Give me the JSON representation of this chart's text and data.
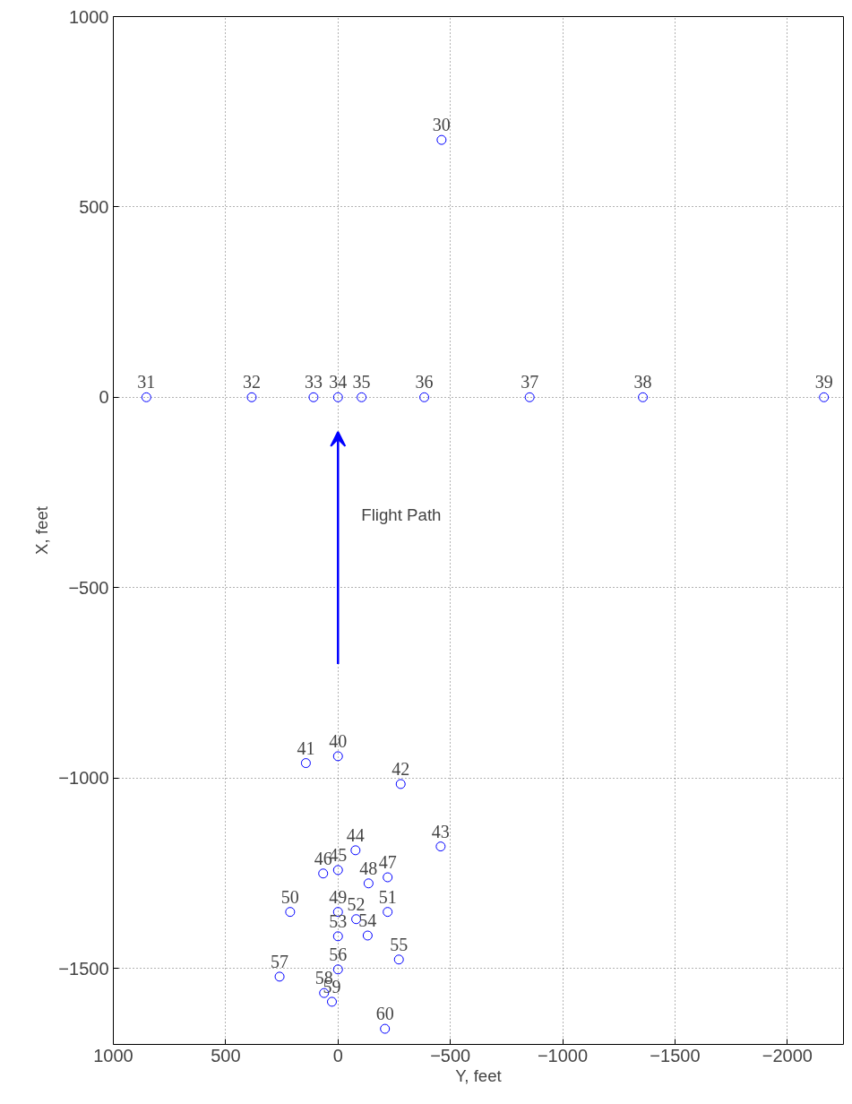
{
  "chart_data": {
    "type": "scatter",
    "xlabel": "Y, feet",
    "ylabel": "X, feet",
    "x": [
      -461,
      853,
      384,
      109,
      0,
      -105,
      -384,
      -853,
      -1357,
      -2163,
      0,
      143,
      -279,
      -457,
      -78,
      0,
      66,
      -221,
      -136,
      0,
      213,
      -221,
      -81,
      0,
      -132,
      -271,
      0,
      260,
      62,
      27,
      -209
    ],
    "series": [
      {
        "color": "#0000ff",
        "values": [
          676,
          0,
          0,
          0,
          0,
          0,
          0,
          0,
          0,
          0,
          -943,
          -961,
          -1016,
          -1180,
          -1190,
          -1242,
          -1251,
          -1261,
          -1277,
          -1352,
          -1352,
          -1352,
          -1371,
          -1416,
          -1414,
          -1477,
          -1503,
          -1522,
          -1565,
          -1588,
          -1659
        ]
      }
    ],
    "annotations": [
      {
        "text": "30",
        "x": -461,
        "y": 676
      },
      {
        "text": "31",
        "x": 853,
        "y": 0
      },
      {
        "text": "32",
        "x": 384,
        "y": 0
      },
      {
        "text": "33",
        "x": 109,
        "y": 0
      },
      {
        "text": "34",
        "x": 0,
        "y": 0
      },
      {
        "text": "35",
        "x": -105,
        "y": 0
      },
      {
        "text": "36",
        "x": -384,
        "y": 0
      },
      {
        "text": "37",
        "x": -853,
        "y": 0
      },
      {
        "text": "38",
        "x": -1357,
        "y": 0
      },
      {
        "text": "39",
        "x": -2163,
        "y": 0
      },
      {
        "text": "40",
        "x": 0,
        "y": -943
      },
      {
        "text": "41",
        "x": 143,
        "y": -961
      },
      {
        "text": "42",
        "x": -279,
        "y": -1016
      },
      {
        "text": "43",
        "x": -457,
        "y": -1180
      },
      {
        "text": "44",
        "x": -78,
        "y": -1190
      },
      {
        "text": "45",
        "x": 0,
        "y": -1242
      },
      {
        "text": "46",
        "x": 66,
        "y": -1251
      },
      {
        "text": "47",
        "x": -221,
        "y": -1261
      },
      {
        "text": "48",
        "x": -136,
        "y": -1277
      },
      {
        "text": "49",
        "x": 0,
        "y": -1352
      },
      {
        "text": "50",
        "x": 213,
        "y": -1352
      },
      {
        "text": "51",
        "x": -221,
        "y": -1352
      },
      {
        "text": "52",
        "x": -81,
        "y": -1371
      },
      {
        "text": "53",
        "x": 0,
        "y": -1416
      },
      {
        "text": "54",
        "x": -132,
        "y": -1414
      },
      {
        "text": "55",
        "x": -271,
        "y": -1477
      },
      {
        "text": "56",
        "x": 0,
        "y": -1503
      },
      {
        "text": "57",
        "x": 260,
        "y": -1522
      },
      {
        "text": "58",
        "x": 62,
        "y": -1565
      },
      {
        "text": "59",
        "x": 27,
        "y": -1588
      },
      {
        "text": "60",
        "x": -209,
        "y": -1659
      },
      "Flight Path"
    ],
    "xlim": [
      1000,
      -2250
    ],
    "ylim": [
      -1700,
      1000
    ],
    "xticks": [
      1000,
      500,
      0,
      {
        "value": -500,
        "label": "−500"
      },
      {
        "value": -1000,
        "label": "−1000"
      },
      {
        "value": -1500,
        "label": "−1500"
      },
      {
        "value": -2000,
        "label": "−2000"
      }
    ],
    "yticks": [
      1000,
      500,
      0,
      {
        "value": -500,
        "label": "−500"
      },
      {
        "value": -1000,
        "label": "−1000"
      },
      {
        "value": -1500,
        "label": "−1500"
      }
    ],
    "grid": true,
    "marker": "circle"
  }
}
